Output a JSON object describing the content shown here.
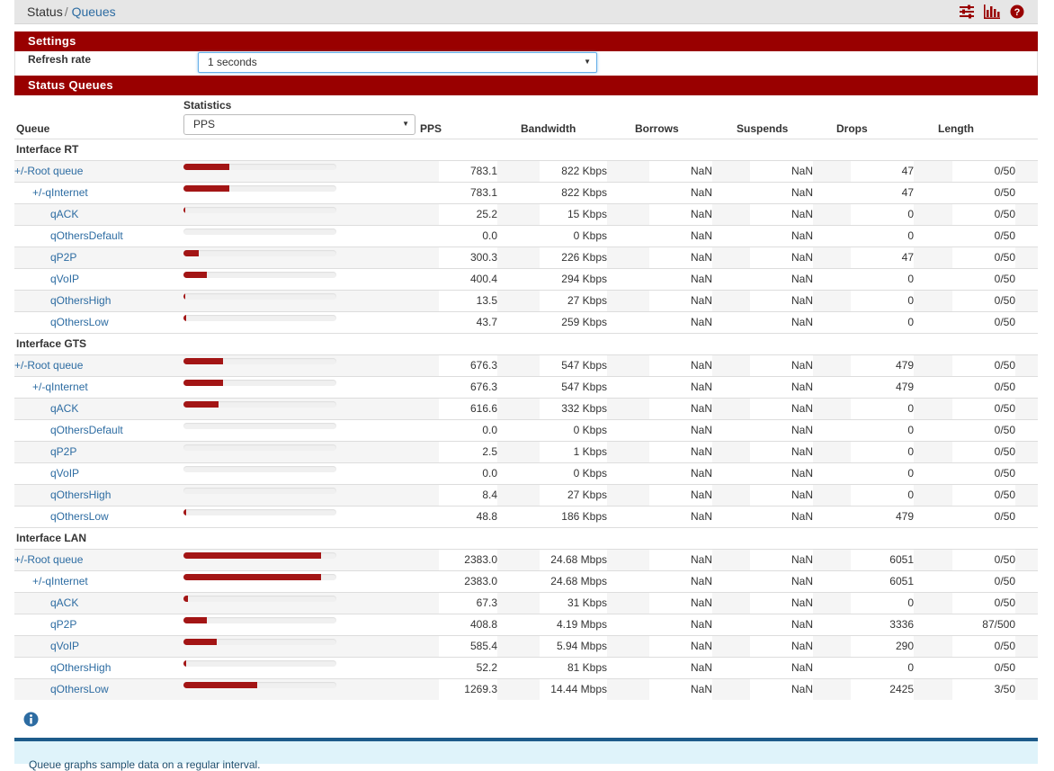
{
  "breadcrumb": {
    "status": "Status",
    "separator": "/",
    "page": "Queues"
  },
  "toolbar_icons": [
    "sliders-icon",
    "bar-chart-icon",
    "help-circle-icon"
  ],
  "colors": {
    "brand": "#990000",
    "bar": "#a31515",
    "link": "#2d6ca2"
  },
  "settings": {
    "title": "Settings",
    "refresh_label": "Refresh rate",
    "refresh_value": "1 seconds"
  },
  "status_queues": {
    "title": "Status Queues",
    "statistics_label": "Statistics",
    "statistics_value": "PPS",
    "columns": {
      "queue": "Queue",
      "pps": "PPS",
      "bandwidth": "Bandwidth",
      "borrows": "Borrows",
      "suspends": "Suspends",
      "drops": "Drops",
      "length": "Length"
    },
    "interfaces": [
      {
        "name": "Interface RT",
        "queues": [
          {
            "name": "+/-Root queue",
            "level": 0,
            "bar_pct": 30,
            "pps": "783.1",
            "bw": "822 Kbps",
            "borrows": "NaN",
            "suspends": "NaN",
            "drops": "47",
            "length": "0/50"
          },
          {
            "name": "+/-qInternet",
            "level": 1,
            "bar_pct": 30,
            "pps": "783.1",
            "bw": "822 Kbps",
            "borrows": "NaN",
            "suspends": "NaN",
            "drops": "47",
            "length": "0/50"
          },
          {
            "name": "qACK",
            "level": 2,
            "bar_pct": 1,
            "pps": "25.2",
            "bw": "15 Kbps",
            "borrows": "NaN",
            "suspends": "NaN",
            "drops": "0",
            "length": "0/50"
          },
          {
            "name": "qOthersDefault",
            "level": 2,
            "bar_pct": 0,
            "pps": "0.0",
            "bw": "0 Kbps",
            "borrows": "NaN",
            "suspends": "NaN",
            "drops": "0",
            "length": "0/50"
          },
          {
            "name": "qP2P",
            "level": 2,
            "bar_pct": 10,
            "pps": "300.3",
            "bw": "226 Kbps",
            "borrows": "NaN",
            "suspends": "NaN",
            "drops": "47",
            "length": "0/50"
          },
          {
            "name": "qVoIP",
            "level": 2,
            "bar_pct": 15,
            "pps": "400.4",
            "bw": "294 Kbps",
            "borrows": "NaN",
            "suspends": "NaN",
            "drops": "0",
            "length": "0/50"
          },
          {
            "name": "qOthersHigh",
            "level": 2,
            "bar_pct": 1,
            "pps": "13.5",
            "bw": "27 Kbps",
            "borrows": "NaN",
            "suspends": "NaN",
            "drops": "0",
            "length": "0/50"
          },
          {
            "name": "qOthersLow",
            "level": 2,
            "bar_pct": 2,
            "pps": "43.7",
            "bw": "259 Kbps",
            "borrows": "NaN",
            "suspends": "NaN",
            "drops": "0",
            "length": "0/50"
          }
        ]
      },
      {
        "name": "Interface GTS",
        "queues": [
          {
            "name": "+/-Root queue",
            "level": 0,
            "bar_pct": 26,
            "pps": "676.3",
            "bw": "547 Kbps",
            "borrows": "NaN",
            "suspends": "NaN",
            "drops": "479",
            "length": "0/50"
          },
          {
            "name": "+/-qInternet",
            "level": 1,
            "bar_pct": 26,
            "pps": "676.3",
            "bw": "547 Kbps",
            "borrows": "NaN",
            "suspends": "NaN",
            "drops": "479",
            "length": "0/50"
          },
          {
            "name": "qACK",
            "level": 2,
            "bar_pct": 23,
            "pps": "616.6",
            "bw": "332 Kbps",
            "borrows": "NaN",
            "suspends": "NaN",
            "drops": "0",
            "length": "0/50"
          },
          {
            "name": "qOthersDefault",
            "level": 2,
            "bar_pct": 0,
            "pps": "0.0",
            "bw": "0 Kbps",
            "borrows": "NaN",
            "suspends": "NaN",
            "drops": "0",
            "length": "0/50"
          },
          {
            "name": "qP2P",
            "level": 2,
            "bar_pct": 0,
            "pps": "2.5",
            "bw": "1 Kbps",
            "borrows": "NaN",
            "suspends": "NaN",
            "drops": "0",
            "length": "0/50"
          },
          {
            "name": "qVoIP",
            "level": 2,
            "bar_pct": 0,
            "pps": "0.0",
            "bw": "0 Kbps",
            "borrows": "NaN",
            "suspends": "NaN",
            "drops": "0",
            "length": "0/50"
          },
          {
            "name": "qOthersHigh",
            "level": 2,
            "bar_pct": 0,
            "pps": "8.4",
            "bw": "27 Kbps",
            "borrows": "NaN",
            "suspends": "NaN",
            "drops": "0",
            "length": "0/50"
          },
          {
            "name": "qOthersLow",
            "level": 2,
            "bar_pct": 2,
            "pps": "48.8",
            "bw": "186 Kbps",
            "borrows": "NaN",
            "suspends": "NaN",
            "drops": "479",
            "length": "0/50"
          }
        ]
      },
      {
        "name": "Interface LAN",
        "queues": [
          {
            "name": "+/-Root queue",
            "level": 0,
            "bar_pct": 90,
            "pps": "2383.0",
            "bw": "24.68 Mbps",
            "borrows": "NaN",
            "suspends": "NaN",
            "drops": "6051",
            "length": "0/50"
          },
          {
            "name": "+/-qInternet",
            "level": 1,
            "bar_pct": 90,
            "pps": "2383.0",
            "bw": "24.68 Mbps",
            "borrows": "NaN",
            "suspends": "NaN",
            "drops": "6051",
            "length": "0/50"
          },
          {
            "name": "qACK",
            "level": 2,
            "bar_pct": 3,
            "pps": "67.3",
            "bw": "31 Kbps",
            "borrows": "NaN",
            "suspends": "NaN",
            "drops": "0",
            "length": "0/50"
          },
          {
            "name": "qP2P",
            "level": 2,
            "bar_pct": 15,
            "pps": "408.8",
            "bw": "4.19 Mbps",
            "borrows": "NaN",
            "suspends": "NaN",
            "drops": "3336",
            "length": "87/500"
          },
          {
            "name": "qVoIP",
            "level": 2,
            "bar_pct": 22,
            "pps": "585.4",
            "bw": "5.94 Mbps",
            "borrows": "NaN",
            "suspends": "NaN",
            "drops": "290",
            "length": "0/50"
          },
          {
            "name": "qOthersHigh",
            "level": 2,
            "bar_pct": 2,
            "pps": "52.2",
            "bw": "81 Kbps",
            "borrows": "NaN",
            "suspends": "NaN",
            "drops": "0",
            "length": "0/50"
          },
          {
            "name": "qOthersLow",
            "level": 2,
            "bar_pct": 48,
            "pps": "1269.3",
            "bw": "14.44 Mbps",
            "borrows": "NaN",
            "suspends": "NaN",
            "drops": "2425",
            "length": "3/50"
          }
        ]
      }
    ]
  },
  "info_callout": "Queue graphs sample data on a regular interval."
}
